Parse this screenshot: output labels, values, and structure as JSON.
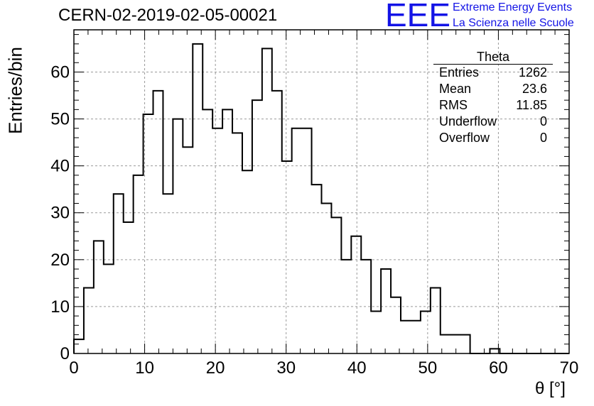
{
  "header": {
    "title": "CERN-02-2019-02-05-00021",
    "logo_text": "EEE",
    "subtitle_line1": "Extreme Energy Events",
    "subtitle_line2": "La Scienza nelle Scuole"
  },
  "stats_box": {
    "title": "Theta",
    "rows": [
      {
        "label": "Entries",
        "value": "1262"
      },
      {
        "label": "Mean",
        "value": "23.6"
      },
      {
        "label": "RMS",
        "value": "11.85"
      },
      {
        "label": "Underflow",
        "value": "0"
      },
      {
        "label": "Overflow",
        "value": "0"
      }
    ]
  },
  "colors": {
    "logo": "#1414e6",
    "line": "#000000",
    "grid": "#9a9a9a"
  },
  "chart_data": {
    "type": "bar",
    "style": "step histogram",
    "title": "CERN-02-2019-02-05-00021",
    "xlabel": "θ [°]",
    "ylabel": "Entries/bin",
    "xlim": [
      0,
      70
    ],
    "ylim": [
      0,
      69
    ],
    "bin_width": 1.4,
    "bin_edges_start": 0,
    "values": [
      3,
      14,
      24,
      19,
      34,
      28,
      38,
      51,
      56,
      34,
      50,
      44,
      66,
      52,
      48,
      52,
      47,
      39,
      54,
      65,
      56,
      41,
      48,
      48,
      36,
      32,
      29,
      20,
      25,
      20,
      9,
      18,
      12,
      7,
      7,
      9,
      14,
      4,
      4,
      4,
      0,
      0,
      1,
      0,
      0,
      0,
      0,
      0,
      0,
      0
    ],
    "xticks": [
      "0",
      "10",
      "20",
      "30",
      "40",
      "50",
      "60",
      "70"
    ],
    "yticks": [
      "0",
      "10",
      "20",
      "30",
      "40",
      "50",
      "60"
    ],
    "grid": true
  }
}
